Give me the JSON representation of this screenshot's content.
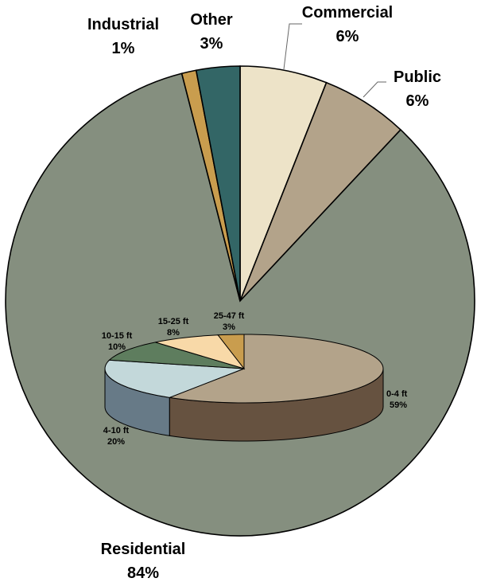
{
  "chart_data": [
    {
      "type": "pie",
      "slices": [
        {
          "label": "Commercial",
          "value": 6,
          "pct_label": "6%",
          "color": "#ede3c8"
        },
        {
          "label": "Public",
          "value": 6,
          "pct_label": "6%",
          "color": "#b3a38a"
        },
        {
          "label": "Residential",
          "value": 84,
          "pct_label": "84%",
          "color": "#858f7f"
        },
        {
          "label": "Industrial",
          "value": 1,
          "pct_label": "1%",
          "color": "#c99d4e"
        },
        {
          "label": "Other",
          "value": 3,
          "pct_label": "3%",
          "color": "#336666"
        }
      ],
      "start_angle_deg": 0,
      "direction": "clockwise",
      "title": "",
      "legend": "none"
    },
    {
      "type": "pie",
      "style": "3d",
      "slices": [
        {
          "label": "0-4 ft",
          "value": 59,
          "pct_label": "59%",
          "color": "#b3a38a",
          "side_color": "#665240"
        },
        {
          "label": "4-10 ft",
          "value": 20,
          "pct_label": "20%",
          "color": "#c3d8da",
          "side_color": "#677a87"
        },
        {
          "label": "10-15 ft",
          "value": 10,
          "pct_label": "10%",
          "color": "#5e7d5e",
          "side_color": "#3d5a3d"
        },
        {
          "label": "15-25 ft",
          "value": 8,
          "pct_label": "8%",
          "color": "#f8d9a8",
          "side_color": "#c9a57a"
        },
        {
          "label": "25-47 ft",
          "value": 3,
          "pct_label": "3%",
          "color": "#c99d4e",
          "side_color": "#8f6a2c"
        }
      ],
      "start_angle_deg": 0,
      "direction": "clockwise",
      "title": "",
      "legend": "none"
    }
  ]
}
